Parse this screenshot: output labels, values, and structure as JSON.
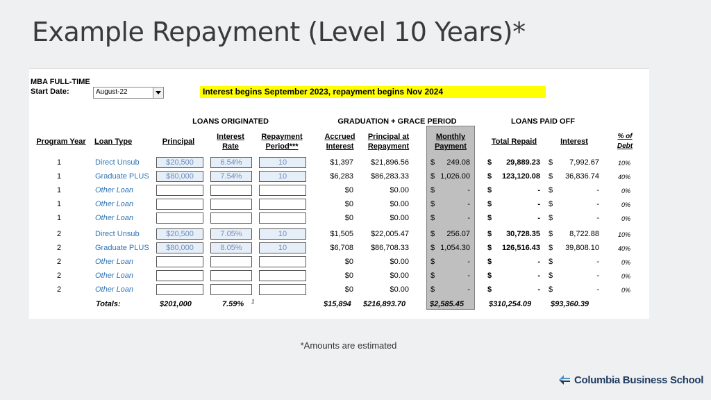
{
  "page": {
    "title": "Example Repayment (Level 10 Years)*",
    "footnote": "*Amounts are estimated",
    "brand": "Columbia Business School"
  },
  "sheet": {
    "program": "MBA FULL-TIME",
    "start_label": "Start Date:",
    "start_value": "August-22",
    "banner": "Interest begins September 2023, repayment begins Nov 2024",
    "sections": {
      "originated": "LOANS ORIGINATED",
      "grace": "GRADUATION + GRACE PERIOD",
      "paid": "LOANS PAID OFF"
    },
    "headers": {
      "program_year": "Program Year",
      "loan_type": "Loan Type",
      "principal": "Principal",
      "interest_rate_1": "Interest",
      "interest_rate_2": "Rate",
      "repay_1": "Repayment",
      "repay_2": "Period***",
      "accrued_1": "Accrued",
      "accrued_2": "Interest",
      "pag_1": "Principal at",
      "pag_2": "Repayment",
      "monthly_1": "Monthly",
      "monthly_2": "Payment",
      "total_repaid": "Total Repaid",
      "interest": "Interest",
      "pct_1": "% of",
      "pct_2": "Debt"
    },
    "rows": [
      {
        "year": "1",
        "type": "Direct Unsub",
        "principal": "$20,500",
        "rate": "6.54%",
        "period": "10",
        "accrued": "$1,397",
        "pag": "$21,896.56",
        "mp_sym": "$",
        "mp": "249.08",
        "tr_sym": "$",
        "tr": "29,889.23",
        "int_sym": "$",
        "int": "7,992.67",
        "pct": "10%",
        "other": false
      },
      {
        "year": "1",
        "type": "Graduate PLUS",
        "principal": "$80,000",
        "rate": "7.54%",
        "period": "10",
        "accrued": "$6,283",
        "pag": "$86,283.33",
        "mp_sym": "$",
        "mp": "1,026.00",
        "tr_sym": "$",
        "tr": "123,120.08",
        "int_sym": "$",
        "int": "36,836.74",
        "pct": "40%",
        "other": false
      },
      {
        "year": "1",
        "type": "Other Loan",
        "principal": "",
        "rate": "",
        "period": "",
        "accrued": "$0",
        "pag": "$0.00",
        "mp_sym": "$",
        "mp": "-",
        "tr_sym": "$",
        "tr": "-",
        "int_sym": "$",
        "int": "-",
        "pct": "0%",
        "other": true
      },
      {
        "year": "1",
        "type": "Other Loan",
        "principal": "",
        "rate": "",
        "period": "",
        "accrued": "$0",
        "pag": "$0.00",
        "mp_sym": "$",
        "mp": "-",
        "tr_sym": "$",
        "tr": "-",
        "int_sym": "$",
        "int": "-",
        "pct": "0%",
        "other": true
      },
      {
        "year": "1",
        "type": "Other Loan",
        "principal": "",
        "rate": "",
        "period": "",
        "accrued": "$0",
        "pag": "$0.00",
        "mp_sym": "$",
        "mp": "-",
        "tr_sym": "$",
        "tr": "-",
        "int_sym": "$",
        "int": "-",
        "pct": "0%",
        "other": true
      },
      {
        "year": "2",
        "type": "Direct Unsub",
        "principal": "$20,500",
        "rate": "7.05%",
        "period": "10",
        "accrued": "$1,505",
        "pag": "$22,005.47",
        "mp_sym": "$",
        "mp": "256.07",
        "tr_sym": "$",
        "tr": "30,728.35",
        "int_sym": "$",
        "int": "8,722.88",
        "pct": "10%",
        "other": false
      },
      {
        "year": "2",
        "type": "Graduate PLUS",
        "principal": "$80,000",
        "rate": "8.05%",
        "period": "10",
        "accrued": "$6,708",
        "pag": "$86,708.33",
        "mp_sym": "$",
        "mp": "1,054.30",
        "tr_sym": "$",
        "tr": "126,516.43",
        "int_sym": "$",
        "int": "39,808.10",
        "pct": "40%",
        "other": false
      },
      {
        "year": "2",
        "type": "Other Loan",
        "principal": "",
        "rate": "",
        "period": "",
        "accrued": "$0",
        "pag": "$0.00",
        "mp_sym": "$",
        "mp": "-",
        "tr_sym": "$",
        "tr": "-",
        "int_sym": "$",
        "int": "-",
        "pct": "0%",
        "other": true
      },
      {
        "year": "2",
        "type": "Other Loan",
        "principal": "",
        "rate": "",
        "period": "",
        "accrued": "$0",
        "pag": "$0.00",
        "mp_sym": "$",
        "mp": "-",
        "tr_sym": "$",
        "tr": "-",
        "int_sym": "$",
        "int": "-",
        "pct": "0%",
        "other": true
      },
      {
        "year": "2",
        "type": "Other Loan",
        "principal": "",
        "rate": "",
        "period": "",
        "accrued": "$0",
        "pag": "$0.00",
        "mp_sym": "$",
        "mp": "-",
        "tr_sym": "$",
        "tr": "-",
        "int_sym": "$",
        "int": "-",
        "pct": "0%",
        "other": true
      }
    ],
    "totals": {
      "label": "Totals:",
      "principal": "$201,000",
      "rate": "7.59%",
      "rate_note": "1",
      "accrued": "$15,894",
      "pag": "$216,893.70",
      "mp": "$2,585.45",
      "tr": "$310,254.09",
      "int": "$93,360.39"
    }
  }
}
